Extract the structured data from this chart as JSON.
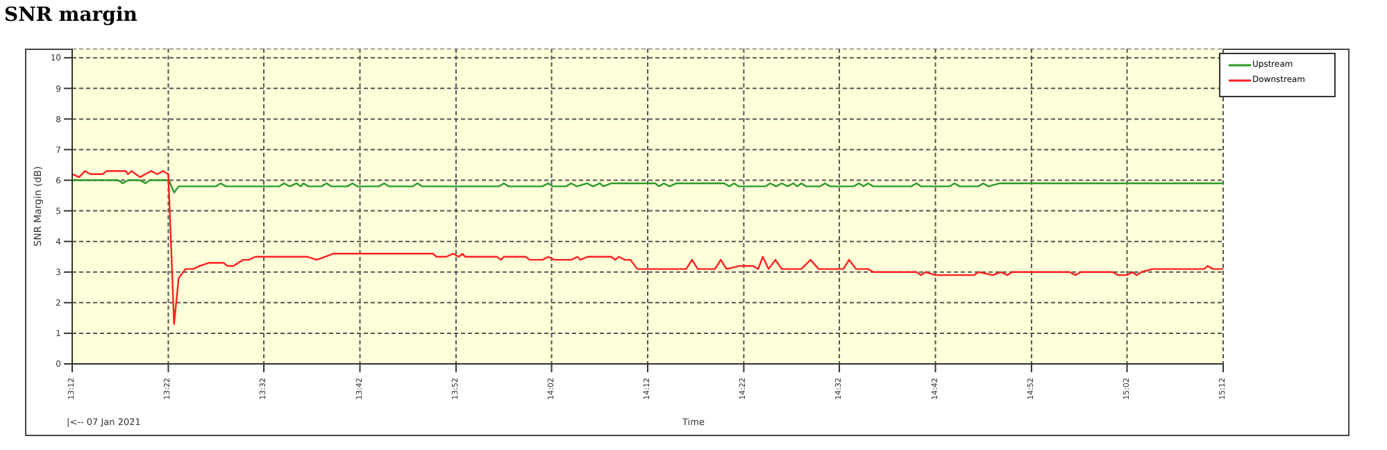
{
  "chart_data": {
    "type": "line",
    "title": "SNR margin",
    "xlabel": "Time",
    "ylabel": "SNR Margin (dB)",
    "annotations": [
      "|<-- 07 Jan 2021"
    ],
    "xlim": [
      13.2,
      15.2
    ],
    "ylim": [
      0,
      10.3
    ],
    "xticks": [
      {
        "value": 13.2,
        "label": "13:12"
      },
      {
        "value": 13.367,
        "label": "13:22"
      },
      {
        "value": 13.533,
        "label": "13:32"
      },
      {
        "value": 13.7,
        "label": "13:42"
      },
      {
        "value": 13.867,
        "label": "13:52"
      },
      {
        "value": 14.033,
        "label": "14:02"
      },
      {
        "value": 14.2,
        "label": "14:12"
      },
      {
        "value": 14.367,
        "label": "14:22"
      },
      {
        "value": 14.533,
        "label": "14:32"
      },
      {
        "value": 14.7,
        "label": "14:42"
      },
      {
        "value": 14.867,
        "label": "14:52"
      },
      {
        "value": 15.033,
        "label": "15:02"
      },
      {
        "value": 15.2,
        "label": "15:12"
      }
    ],
    "yticks": [
      0,
      1,
      2,
      3,
      4,
      5,
      6,
      7,
      8,
      9,
      10
    ],
    "grid": true,
    "legend": "top right",
    "series": [
      {
        "name": "Upstream",
        "color": "#2a9a2a",
        "x": [
          13.2,
          13.28,
          13.288,
          13.297,
          13.318,
          13.327,
          13.335,
          13.368,
          13.377,
          13.385,
          13.45,
          13.458,
          13.467,
          13.56,
          13.568,
          13.578,
          13.59,
          13.597,
          13.602,
          13.61,
          13.633,
          13.642,
          13.65,
          13.678,
          13.687,
          13.695,
          13.733,
          13.742,
          13.75,
          13.792,
          13.8,
          13.808,
          13.942,
          13.95,
          13.958,
          14.017,
          14.027,
          14.035,
          14.058,
          14.067,
          14.077,
          14.095,
          14.105,
          14.117,
          14.123,
          14.137,
          14.213,
          14.22,
          14.228,
          14.238,
          14.25,
          14.333,
          14.342,
          14.35,
          14.358,
          14.405,
          14.413,
          14.423,
          14.433,
          14.443,
          14.453,
          14.46,
          14.467,
          14.475,
          14.5,
          14.508,
          14.517,
          14.558,
          14.567,
          14.575,
          14.583,
          14.592,
          14.658,
          14.667,
          14.675,
          14.725,
          14.733,
          14.742,
          14.775,
          14.783,
          14.792,
          14.812,
          15.2
        ],
        "values": [
          6.0,
          6.0,
          5.9,
          6.0,
          6.0,
          5.9,
          6.0,
          6.0,
          5.6,
          5.8,
          5.8,
          5.9,
          5.8,
          5.8,
          5.9,
          5.8,
          5.9,
          5.8,
          5.9,
          5.8,
          5.8,
          5.9,
          5.8,
          5.8,
          5.9,
          5.8,
          5.8,
          5.9,
          5.8,
          5.8,
          5.9,
          5.8,
          5.8,
          5.9,
          5.8,
          5.8,
          5.9,
          5.8,
          5.8,
          5.9,
          5.8,
          5.9,
          5.8,
          5.9,
          5.8,
          5.9,
          5.9,
          5.8,
          5.9,
          5.8,
          5.9,
          5.9,
          5.8,
          5.9,
          5.8,
          5.8,
          5.9,
          5.8,
          5.9,
          5.8,
          5.9,
          5.8,
          5.9,
          5.8,
          5.8,
          5.9,
          5.8,
          5.8,
          5.9,
          5.8,
          5.9,
          5.8,
          5.8,
          5.9,
          5.8,
          5.8,
          5.9,
          5.8,
          5.8,
          5.9,
          5.8,
          5.9,
          5.9
        ]
      },
      {
        "name": "Downstream",
        "color": "#ff2020",
        "x": [
          13.2,
          13.212,
          13.222,
          13.232,
          13.253,
          13.26,
          13.293,
          13.297,
          13.303,
          13.318,
          13.337,
          13.348,
          13.358,
          13.367,
          13.372,
          13.377,
          13.385,
          13.397,
          13.41,
          13.422,
          13.437,
          13.463,
          13.47,
          13.48,
          13.497,
          13.507,
          13.518,
          13.608,
          13.625,
          13.64,
          13.653,
          13.827,
          13.833,
          13.85,
          13.862,
          13.872,
          13.878,
          13.883,
          13.938,
          13.945,
          13.95,
          13.988,
          13.995,
          14.017,
          14.027,
          14.038,
          14.067,
          14.078,
          14.083,
          14.095,
          14.137,
          14.143,
          14.15,
          14.16,
          14.17,
          14.182,
          14.267,
          14.277,
          14.287,
          14.317,
          14.327,
          14.337,
          14.36,
          14.383,
          14.392,
          14.4,
          14.41,
          14.422,
          14.433,
          14.467,
          14.483,
          14.497,
          14.54,
          14.55,
          14.562,
          14.583,
          14.592,
          14.667,
          14.675,
          14.683,
          14.7,
          14.767,
          14.775,
          14.8,
          14.813,
          14.825,
          14.833,
          14.933,
          14.943,
          14.953,
          15.008,
          15.017,
          15.033,
          15.042,
          15.05,
          15.058,
          15.077,
          15.167,
          15.173,
          15.182,
          15.2
        ],
        "values": [
          6.2,
          6.1,
          6.3,
          6.2,
          6.2,
          6.3,
          6.3,
          6.2,
          6.3,
          6.1,
          6.3,
          6.2,
          6.3,
          6.2,
          3.8,
          1.3,
          2.8,
          3.1,
          3.1,
          3.2,
          3.3,
          3.3,
          3.2,
          3.2,
          3.4,
          3.4,
          3.5,
          3.5,
          3.4,
          3.5,
          3.6,
          3.6,
          3.5,
          3.5,
          3.6,
          3.5,
          3.6,
          3.5,
          3.5,
          3.4,
          3.5,
          3.5,
          3.4,
          3.4,
          3.5,
          3.4,
          3.4,
          3.5,
          3.4,
          3.5,
          3.5,
          3.4,
          3.5,
          3.4,
          3.4,
          3.1,
          3.1,
          3.4,
          3.1,
          3.1,
          3.4,
          3.1,
          3.2,
          3.2,
          3.1,
          3.5,
          3.1,
          3.4,
          3.1,
          3.1,
          3.4,
          3.1,
          3.1,
          3.4,
          3.1,
          3.1,
          3.0,
          3.0,
          2.9,
          3.0,
          2.9,
          2.9,
          3.0,
          2.9,
          3.0,
          2.9,
          3.0,
          3.0,
          2.9,
          3.0,
          3.0,
          2.9,
          2.9,
          3.0,
          2.9,
          3.0,
          3.1,
          3.1,
          3.2,
          3.1,
          3.1
        ]
      }
    ]
  }
}
